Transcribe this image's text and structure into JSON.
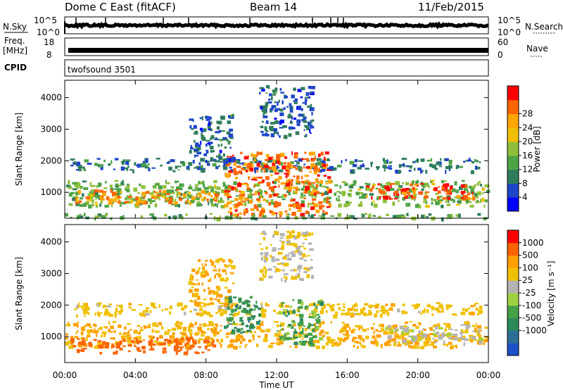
{
  "header": {
    "station": "Dome C East (fitACF)",
    "beam": "Beam 14",
    "date": "11/Feb/2015"
  },
  "panels": {
    "nsky": {
      "label": "N.Sky",
      "ticks": [
        "10^5",
        "10^0"
      ]
    },
    "nsearch": {
      "label": "N.Search",
      "ticks": [
        "10^5",
        "10^0"
      ]
    },
    "freq": {
      "label_line1": "Freq.",
      "label_line2": "[MHz]",
      "ticks": [
        "18",
        "8"
      ]
    },
    "nave": {
      "label": "Nave",
      "ticks": [
        "60",
        "0"
      ]
    },
    "cpid": {
      "label": "CPID",
      "value": "twofsound 3501"
    }
  },
  "chart_data": [
    {
      "type": "heatmap",
      "quantity": "power",
      "ylabel": "Slant Range [km]",
      "yticks": [
        "1000",
        "2000",
        "3000",
        "4000"
      ],
      "ylim": [
        180,
        4550
      ],
      "xlim": [
        0,
        24
      ],
      "colorbar": {
        "label": "Power [dB]",
        "ticks": [
          "4",
          "8",
          "12",
          "16",
          "20",
          "24",
          "28"
        ],
        "colors": [
          "#0000ff",
          "#1e46c8",
          "#2e7d5a",
          "#4fa347",
          "#8fbf3a",
          "#f0c000",
          "#ffa500",
          "#ff6400",
          "#ff0000"
        ]
      },
      "features": [
        {
          "t0": 0.0,
          "t1": 24.0,
          "r0": 600,
          "r1": 1400,
          "level": 12
        },
        {
          "t0": 0.3,
          "t1": 8.5,
          "r0": 700,
          "r1": 1100,
          "level": 22
        },
        {
          "t0": 0.3,
          "t1": 23.5,
          "r0": 1700,
          "r1": 2100,
          "level": 6
        },
        {
          "t0": 9.0,
          "t1": 15.0,
          "r0": 300,
          "r1": 2300,
          "level": 24
        },
        {
          "t0": 17.0,
          "t1": 23.5,
          "r0": 800,
          "r1": 1300,
          "level": 26
        },
        {
          "t0": 7.0,
          "t1": 9.5,
          "r0": 2000,
          "r1": 3500,
          "level": 5
        },
        {
          "t0": 11.0,
          "t1": 14.0,
          "r0": 2800,
          "r1": 4400,
          "level": 5
        },
        {
          "t0": 0.0,
          "t1": 24.0,
          "r0": 200,
          "r1": 350,
          "level": 10
        }
      ]
    },
    {
      "type": "heatmap",
      "quantity": "velocity",
      "ylabel": "Slant Range [km]",
      "yticks": [
        "1000",
        "2000",
        "3000",
        "4000"
      ],
      "ylim": [
        180,
        4550
      ],
      "xlim": [
        0,
        24
      ],
      "xlabel": "Time UT",
      "xticks": [
        "00:00",
        "04:00",
        "08:00",
        "12:00",
        "16:00",
        "20:00",
        "00:00"
      ],
      "colorbar": {
        "label": "Velocity [m s⁻¹]",
        "ticks": [
          "1000",
          "500",
          "100",
          "25",
          "-25",
          "-100",
          "-500",
          "-1000"
        ],
        "colors": [
          "#1e50c8",
          "#2c6e96",
          "#2e8a5a",
          "#46a046",
          "#a0d040",
          "#b4b4b4",
          "#f0c000",
          "#ffa000",
          "#ff6400",
          "#ff0000"
        ]
      },
      "features": [
        {
          "t0": 0.0,
          "t1": 24.0,
          "r0": 700,
          "r1": 1500,
          "level": -30
        },
        {
          "t0": 0.3,
          "t1": 8.5,
          "r0": 500,
          "r1": 1000,
          "level": -200
        },
        {
          "t0": 0.3,
          "t1": 23.5,
          "r0": 1700,
          "r1": 2100,
          "level": 0
        },
        {
          "t0": 9.0,
          "t1": 11.0,
          "r0": 1100,
          "r1": 2300,
          "level": 700
        },
        {
          "t0": 12.0,
          "t1": 14.5,
          "r0": 800,
          "r1": 2200,
          "level": 400
        },
        {
          "t0": 18.0,
          "t1": 23.5,
          "r0": 800,
          "r1": 1400,
          "level": 60
        },
        {
          "t0": 7.0,
          "t1": 9.5,
          "r0": 2000,
          "r1": 3500,
          "level": -40
        },
        {
          "t0": 11.0,
          "t1": 14.0,
          "r0": 2800,
          "r1": 4400,
          "level": 20
        }
      ]
    }
  ],
  "colors": {
    "line": "#000000",
    "background": "#ffffff"
  }
}
